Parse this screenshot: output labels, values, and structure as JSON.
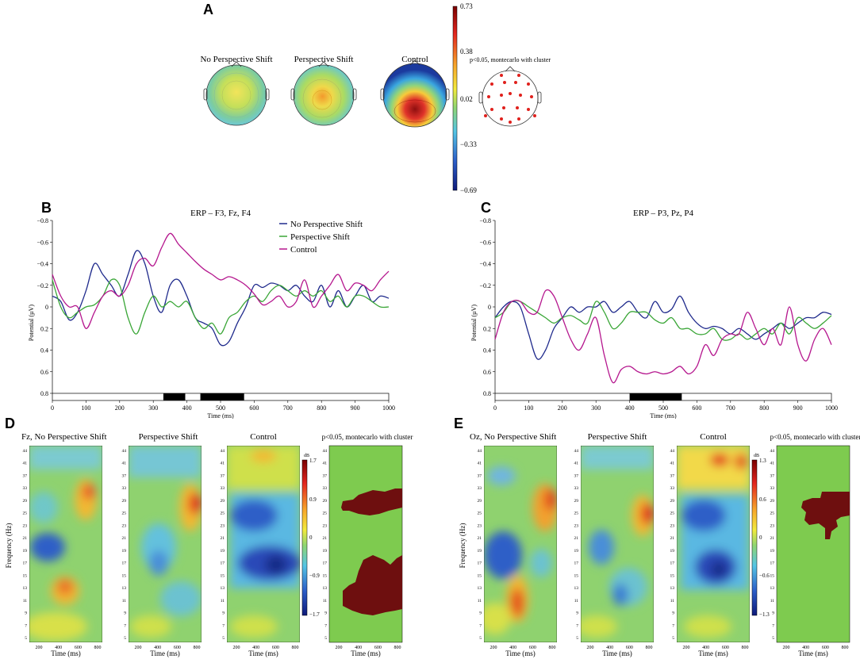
{
  "panel_letters": [
    "A",
    "B",
    "C",
    "D",
    "E"
  ],
  "colors": {
    "no_shift": "#1f2a8c",
    "shift": "#3aa637",
    "control": "#b5178e",
    "sig_cluster": "#6e0f0f",
    "nonsig": "#7ecb4f"
  },
  "topo": {
    "conditions": [
      "No Perspective Shift",
      "Perspective Shift",
      "Control"
    ],
    "colorbar_ticks": [
      "0.73",
      "0.38",
      "0.02",
      "−0.33",
      "−0.69"
    ],
    "colorbar_range": [
      -0.69,
      0.73
    ],
    "stats_label": "p<0.05, montecarlo with cluster"
  },
  "chart_data": [
    {
      "panel": "B",
      "type": "line",
      "title": "ERP – F3, Fz, F4",
      "xlabel": "Time (ms)",
      "ylabel": "Potential (µV)",
      "xlim": [
        0,
        1000
      ],
      "ylim": [
        0.8,
        -0.8
      ],
      "y_inverted": true,
      "xticks": [
        "0",
        "100",
        "200",
        "300",
        "400",
        "500",
        "600",
        "700",
        "800",
        "900",
        "1000"
      ],
      "yticks": [
        "−0.8",
        "−0.6",
        "−0.4",
        "−0.2",
        "0",
        "0.2",
        "0.4",
        "0.6",
        "0.8"
      ],
      "legend_position": "top-right",
      "x": [
        0,
        25,
        50,
        75,
        100,
        125,
        150,
        175,
        200,
        225,
        250,
        275,
        300,
        325,
        350,
        375,
        400,
        425,
        450,
        475,
        500,
        525,
        550,
        575,
        600,
        625,
        650,
        675,
        700,
        725,
        750,
        775,
        800,
        825,
        850,
        875,
        900,
        925,
        950,
        975,
        1000
      ],
      "series": [
        {
          "name": "No Perspective Shift",
          "values": [
            -0.1,
            -0.05,
            0.12,
            0.05,
            -0.15,
            -0.4,
            -0.3,
            -0.2,
            -0.1,
            -0.3,
            -0.52,
            -0.4,
            -0.1,
            0.05,
            -0.2,
            -0.25,
            -0.1,
            0.1,
            0.15,
            0.2,
            0.35,
            0.32,
            0.15,
            0.0,
            -0.2,
            -0.18,
            -0.22,
            -0.2,
            -0.15,
            -0.2,
            -0.1,
            -0.05,
            -0.2,
            0.0,
            -0.15,
            0.0,
            -0.1,
            -0.2,
            -0.05,
            -0.1,
            -0.08
          ]
        },
        {
          "name": "Perspective Shift",
          "values": [
            -0.25,
            0.0,
            0.1,
            0.05,
            0.0,
            -0.02,
            -0.1,
            -0.25,
            -0.2,
            0.1,
            0.25,
            0.05,
            -0.1,
            0.0,
            -0.05,
            0.0,
            -0.05,
            0.1,
            0.2,
            0.15,
            0.25,
            0.1,
            0.05,
            -0.05,
            -0.1,
            -0.05,
            -0.15,
            -0.2,
            -0.15,
            -0.1,
            -0.15,
            -0.1,
            -0.15,
            -0.05,
            -0.1,
            0.0,
            -0.1,
            -0.1,
            -0.05,
            0.0,
            0.0
          ]
        },
        {
          "name": "Control",
          "values": [
            -0.3,
            -0.1,
            0.0,
            0.0,
            0.2,
            0.05,
            -0.1,
            -0.15,
            -0.1,
            -0.2,
            -0.4,
            -0.45,
            -0.38,
            -0.55,
            -0.68,
            -0.58,
            -0.5,
            -0.42,
            -0.35,
            -0.3,
            -0.25,
            -0.28,
            -0.25,
            -0.2,
            -0.12,
            -0.02,
            -0.05,
            -0.1,
            0.0,
            -0.05,
            -0.25,
            0.0,
            -0.1,
            -0.2,
            -0.3,
            -0.15,
            -0.22,
            -0.2,
            -0.15,
            -0.25,
            -0.33
          ]
        }
      ],
      "sig_windows": [
        [
          330,
          395
        ],
        [
          440,
          570
        ]
      ]
    },
    {
      "panel": "C",
      "type": "line",
      "title": "ERP – P3, Pz, P4",
      "xlabel": "Time (ms)",
      "ylabel": "Potential (µV)",
      "xlim": [
        0,
        1000
      ],
      "ylim": [
        0.8,
        -0.8
      ],
      "y_inverted": true,
      "xticks": [
        "0",
        "100",
        "200",
        "300",
        "400",
        "500",
        "600",
        "700",
        "800",
        "900",
        "1000"
      ],
      "yticks": [
        "−0.8",
        "−0.6",
        "−0.4",
        "−0.2",
        "0",
        "0.2",
        "0.4",
        "0.6",
        "0.8"
      ],
      "x": [
        0,
        25,
        50,
        75,
        100,
        125,
        150,
        175,
        200,
        225,
        250,
        275,
        300,
        325,
        350,
        375,
        400,
        425,
        450,
        475,
        500,
        525,
        550,
        575,
        600,
        625,
        650,
        675,
        700,
        725,
        750,
        775,
        800,
        825,
        850,
        875,
        900,
        925,
        950,
        975,
        1000
      ],
      "series": [
        {
          "name": "No Perspective Shift",
          "values": [
            0.1,
            0.0,
            -0.05,
            0.0,
            0.25,
            0.48,
            0.4,
            0.2,
            0.1,
            0.0,
            0.05,
            0.0,
            0.0,
            -0.05,
            0.05,
            0.0,
            -0.05,
            0.05,
            0.1,
            -0.05,
            0.05,
            0.02,
            -0.1,
            0.05,
            0.15,
            0.2,
            0.18,
            0.2,
            0.25,
            0.2,
            0.25,
            0.3,
            0.25,
            0.2,
            0.15,
            0.2,
            0.15,
            0.1,
            0.1,
            0.05,
            0.07
          ]
        },
        {
          "name": "Perspective Shift",
          "values": [
            0.1,
            0.05,
            -0.05,
            -0.05,
            0.0,
            0.05,
            0.1,
            0.15,
            0.1,
            0.08,
            0.12,
            0.15,
            -0.05,
            0.05,
            0.2,
            0.15,
            0.05,
            0.05,
            0.05,
            0.12,
            0.15,
            0.1,
            0.2,
            0.2,
            0.25,
            0.25,
            0.2,
            0.3,
            0.3,
            0.25,
            0.3,
            0.25,
            0.2,
            0.25,
            0.15,
            0.25,
            0.1,
            0.15,
            0.2,
            0.15,
            0.08
          ]
        },
        {
          "name": "Control",
          "values": [
            0.3,
            0.05,
            -0.05,
            -0.05,
            0.05,
            0.05,
            -0.15,
            -0.1,
            0.1,
            0.3,
            0.4,
            0.25,
            0.1,
            0.45,
            0.7,
            0.58,
            0.55,
            0.6,
            0.62,
            0.6,
            0.62,
            0.6,
            0.55,
            0.62,
            0.55,
            0.35,
            0.45,
            0.3,
            0.25,
            0.25,
            0.05,
            0.2,
            0.35,
            0.2,
            0.35,
            0.0,
            0.35,
            0.5,
            0.3,
            0.2,
            0.35
          ]
        }
      ],
      "sig_windows": [
        [
          400,
          555
        ]
      ]
    }
  ],
  "tf": {
    "D": {
      "channel_title": "Fz, No Perspective Shift",
      "titles": [
        "Perspective Shift",
        "Control",
        "p<0.05, montecarlo with cluster"
      ],
      "colorbar_unit": "dB",
      "colorbar_ticks": [
        "1.7",
        "0.9",
        "0",
        "−0.9",
        "−1.7"
      ],
      "colorbar_range": [
        -1.7,
        1.7
      ]
    },
    "E": {
      "channel_title": "Oz, No Perspective Shift",
      "titles": [
        "Perspective Shift",
        "Control",
        "p<0.05, montecarlo with cluster"
      ],
      "colorbar_unit": "dB",
      "colorbar_ticks": [
        "1.3",
        "0.6",
        "0",
        "−0.6",
        "−1.3"
      ],
      "colorbar_range": [
        -1.3,
        1.3
      ]
    },
    "freq_ticks": [
      "44",
      "41",
      "37",
      "33",
      "29",
      "25",
      "23",
      "21",
      "19",
      "17",
      "15",
      "13",
      "11",
      "9",
      "7",
      "5"
    ],
    "time_ticks": [
      "200",
      "400",
      "600",
      "800"
    ],
    "ylabel": "Frequency (Hz)",
    "xlabel": "Time (ms)"
  }
}
